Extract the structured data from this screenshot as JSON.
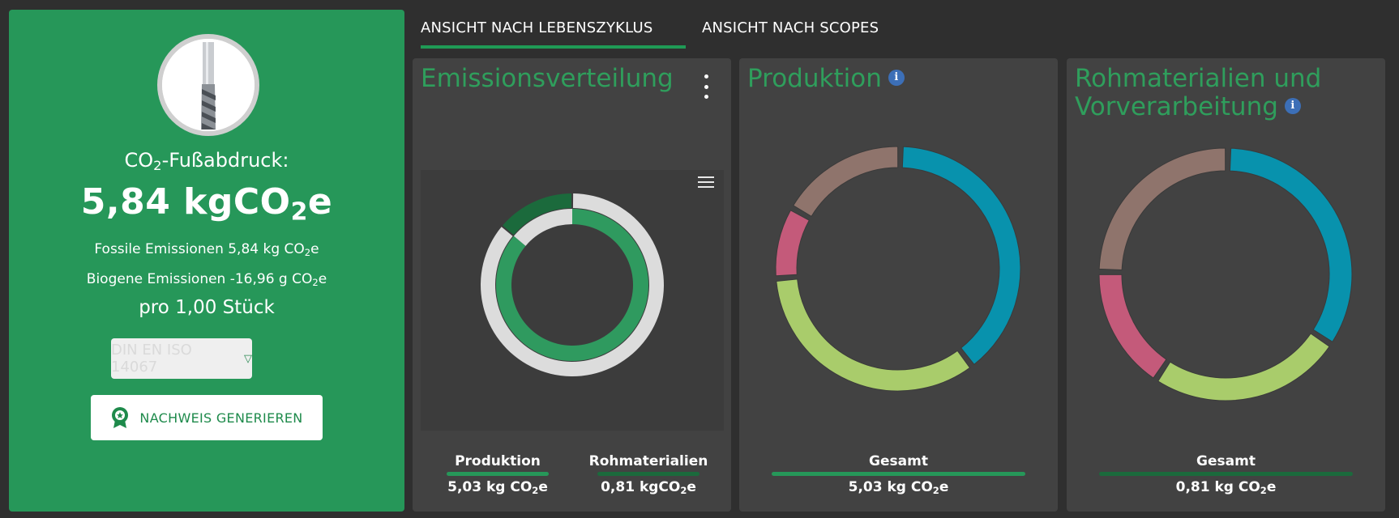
{
  "summary": {
    "co2_label_pre": "CO",
    "co2_label_sub": "2",
    "co2_label_post": "-Fußabdruck:",
    "total_value": "5,84 kgCO",
    "total_sub": "2",
    "total_suffix": "e",
    "fossil_text": "Fossile Emissionen 5,84 kg CO",
    "fossil_sub": "2",
    "fossil_suffix": "e",
    "biogen_text": "Biogene Emissionen -16,96 g CO",
    "biogen_sub": "2",
    "biogen_suffix": "e",
    "per_unit": "pro 1,00 Stück",
    "standard_select": "DIN EN ISO 14067",
    "proof_button": "NACHWEIS GENERIEREN"
  },
  "tabs": [
    {
      "label": "ANSICHT NACH LEBENSZYKLUS",
      "active": true
    },
    {
      "label": "ANSICHT NACH SCOPES",
      "active": false
    }
  ],
  "cards": {
    "emission": {
      "title": "Emissionsverteilung",
      "stats": [
        {
          "label": "Produktion",
          "value": "5,03 kg CO",
          "sub": "2",
          "suffix": "e",
          "color": "#269759"
        },
        {
          "label": "Rohmaterialien",
          "value": "0,81 kgCO",
          "sub": "2",
          "suffix": "e",
          "color": "#1b6a3c"
        }
      ]
    },
    "production": {
      "title": "Produktion",
      "stat": {
        "label": "Gesamt",
        "value": "5,03 kg CO",
        "sub": "2",
        "suffix": "e",
        "color": "#269759"
      }
    },
    "raw": {
      "title_line1": "Rohmaterialien und",
      "title_line2": "Vorverarbeitung",
      "stat": {
        "label": "Gesamt",
        "value": "0,81 kg CO",
        "sub": "2",
        "suffix": "e",
        "color": "#1b6a3c"
      }
    }
  },
  "chart_data": [
    {
      "type": "pie",
      "series": [
        {
          "values": [
            0.861,
            0.139
          ],
          "colors": [
            "#dcdcdc",
            "#1b6a3c"
          ]
        },
        {
          "values": [
            0.861,
            0.139
          ],
          "colors": [
            "#2f9a5f",
            "#dcdcdc"
          ]
        }
      ]
    },
    {
      "type": "pie",
      "values": [
        0.37,
        0.32,
        0.09,
        0.16
      ],
      "colors": [
        "#0892ad",
        "#a9cc6b",
        "#c45a7a",
        "#8f746c"
      ]
    },
    {
      "type": "pie",
      "values": [
        0.34,
        0.25,
        0.16,
        0.25
      ],
      "colors": [
        "#0892ad",
        "#a9cc6b",
        "#c45a7a",
        "#8f746c"
      ]
    }
  ]
}
